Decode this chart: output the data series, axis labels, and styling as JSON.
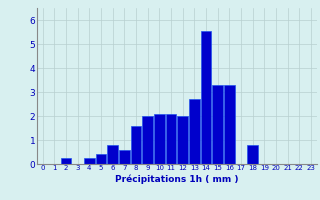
{
  "categories": [
    0,
    1,
    2,
    3,
    4,
    5,
    6,
    7,
    8,
    9,
    10,
    11,
    12,
    13,
    14,
    15,
    16,
    17,
    18,
    19,
    20,
    21,
    22,
    23
  ],
  "values": [
    0,
    0,
    0.25,
    0,
    0.25,
    0.4,
    0.8,
    0.6,
    1.6,
    2.0,
    2.1,
    2.1,
    2.0,
    2.7,
    5.55,
    3.3,
    3.3,
    0,
    0.8,
    0,
    0,
    0,
    0,
    0
  ],
  "bar_color": "#0000cc",
  "bar_edge_color": "#2255ee",
  "background_color": "#d8f0f0",
  "grid_color": "#b8d0d0",
  "xlabel": "Précipitations 1h ( mm )",
  "xlabel_color": "#0000bb",
  "xlabel_fontsize": 6.5,
  "tick_color": "#0000bb",
  "tick_fontsize": 5.0,
  "ytick_fontsize": 6.5,
  "ytick_values": [
    0,
    1,
    2,
    3,
    4,
    5,
    6
  ],
  "ylim": [
    0,
    6.5
  ],
  "xlim": [
    -0.5,
    23.5
  ],
  "figwidth": 3.2,
  "figheight": 2.0,
  "dpi": 100
}
